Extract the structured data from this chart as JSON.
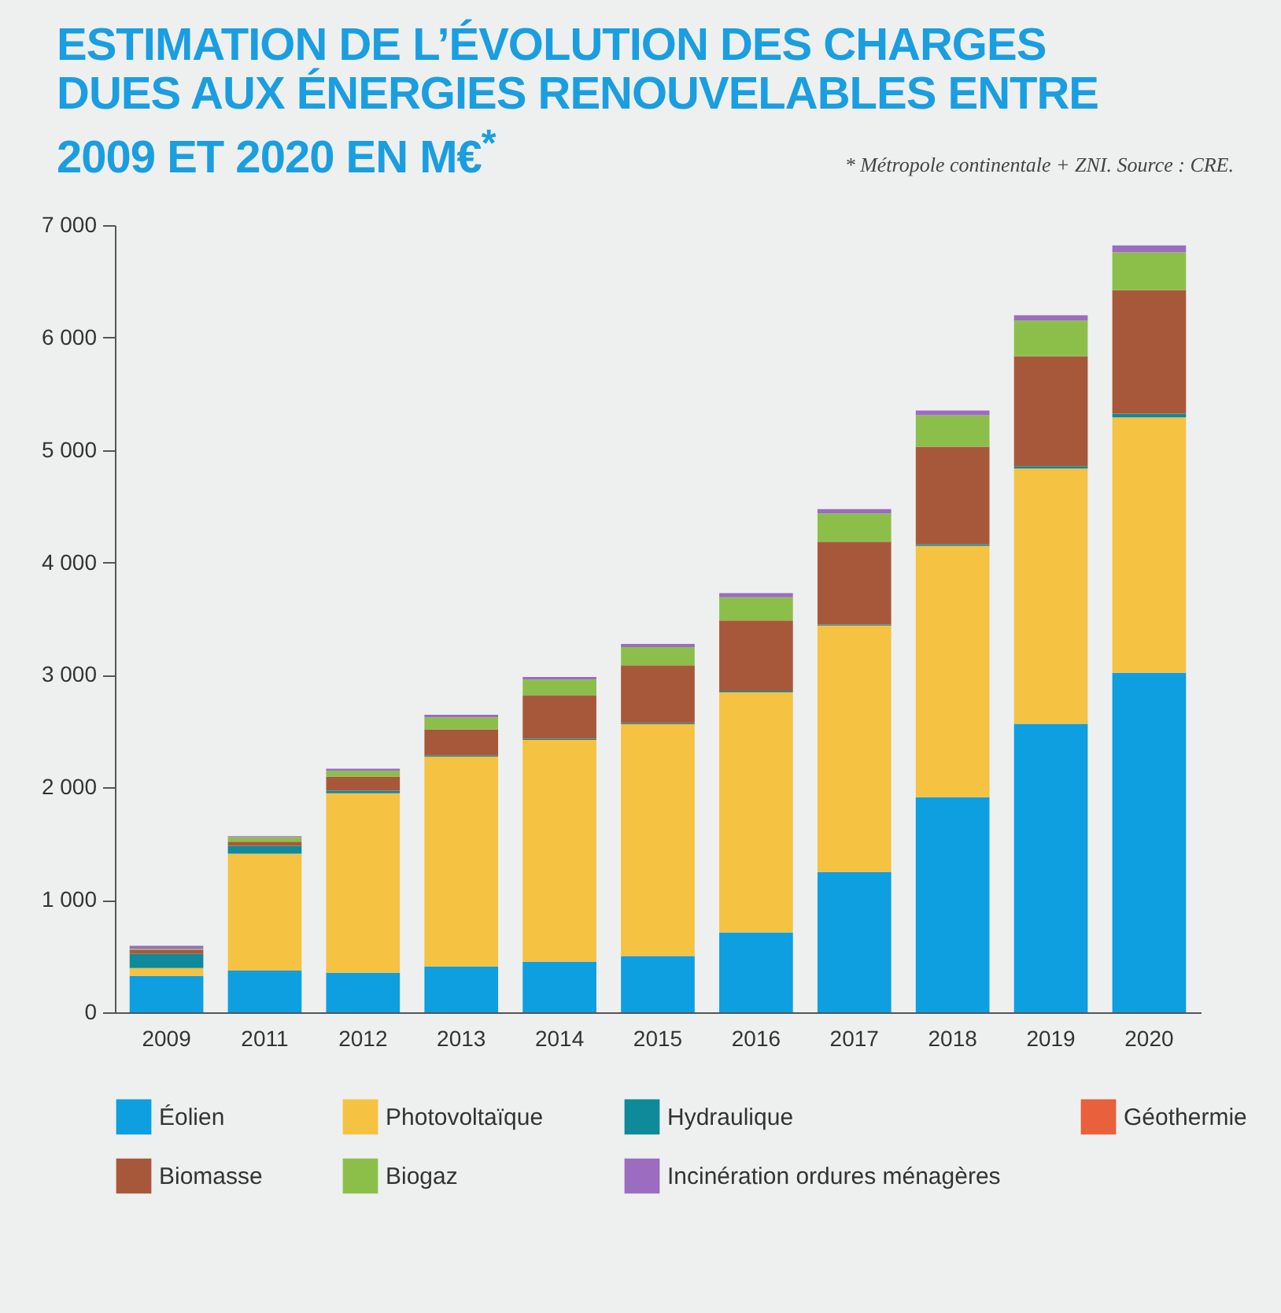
{
  "chart_data": {
    "type": "bar",
    "title": "ESTIMATION DE L’ÉVOLUTION DES CHARGES DUES AUX ÉNERGIES RENOUVELABLES ENTRE 2009 ET 2020 EN M€$^{*}$",
    "annotations": [
      "* Métropole continentale + ZNI. Source : CRE."
    ],
    "categories": [
      "2009",
      "2011",
      "2012",
      "2013",
      "2014",
      "2015",
      "2016",
      "2017",
      "2018",
      "2019",
      "2020"
    ],
    "stacked": true,
    "series": [
      {
        "name": "Éolien",
        "color": "#0d9fe0",
        "values": [
          324,
          371,
          352,
          408,
          450,
          501,
          711,
          1247,
          1913,
          2566,
          3018
        ]
      },
      {
        "name": "Photovoltaïque",
        "color": "#f5c242",
        "values": [
          70,
          1039,
          1595,
          1865,
          1972,
          2061,
          2135,
          2191,
          2234,
          2270,
          2272
        ]
      },
      {
        "name": "Hydraulique",
        "color": "#0f8a9a",
        "values": [
          126,
          70,
          23,
          10,
          10,
          10,
          10,
          10,
          15,
          20,
          33
        ]
      },
      {
        "name": "Géothermie",
        "color": "#e8603c",
        "values": [
          0,
          0,
          0,
          0,
          0,
          0,
          0,
          0,
          0,
          0,
          0
        ]
      },
      {
        "name": "Biomasse",
        "color": "#a8583a",
        "values": [
          33,
          37,
          126,
          233,
          387,
          513,
          629,
          737,
          867,
          979,
          1100
        ]
      },
      {
        "name": "Biogaz",
        "color": "#8cbf4a",
        "values": [
          10,
          40,
          51,
          107,
          140,
          163,
          205,
          252,
          280,
          317,
          336
        ]
      },
      {
        "name": "Incinération ordures ménagères",
        "color": "#9b6cc0",
        "values": [
          28,
          10,
          19,
          23,
          23,
          28,
          37,
          37,
          42,
          47,
          61
        ]
      }
    ],
    "ylim": [
      0,
      7000
    ],
    "yticks": [
      0,
      {
        "value": 1000,
        "label": "1 000"
      },
      {
        "value": 2000,
        "label": "2 000"
      },
      {
        "value": 3000,
        "label": "3 000"
      },
      {
        "value": 4000,
        "label": "4 000"
      },
      {
        "value": 5000,
        "label": "5 000"
      },
      {
        "value": 6000,
        "label": "6 000"
      },
      {
        "value": 7000,
        "label": "7 000"
      }
    ],
    "grid": false,
    "legend": "bottom"
  }
}
